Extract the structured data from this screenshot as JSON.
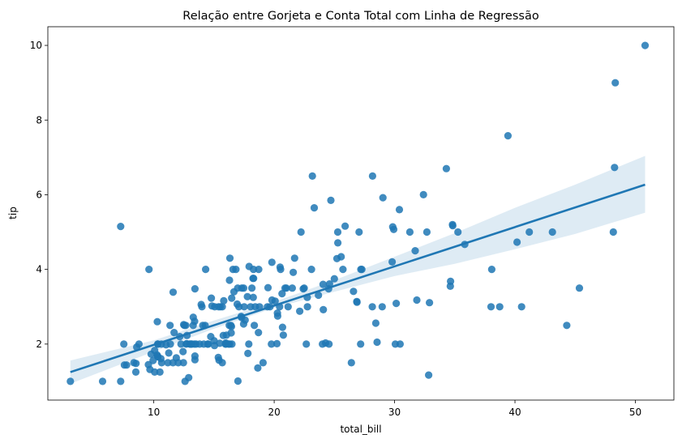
{
  "chart_data": {
    "type": "scatter",
    "title": "Relação entre Gorjeta e Conta Total com Linha de Regressão",
    "xlabel": "total_bill",
    "ylabel": "tip",
    "xlim": [
      1.2,
      53.2
    ],
    "ylim": [
      0.5,
      10.5
    ],
    "xticks": [
      10,
      20,
      30,
      40,
      50
    ],
    "yticks": [
      2,
      4,
      6,
      8,
      10
    ],
    "grid": false,
    "colors": {
      "points": "#1f77b4",
      "line": "#1f77b4",
      "band": "#1f77b4"
    },
    "regression": {
      "x": [
        3.07,
        50.81
      ],
      "y": [
        1.25,
        6.27
      ]
    },
    "confidence_band": {
      "x": [
        3.07,
        10,
        15,
        20,
        25,
        30,
        35,
        40,
        45,
        50.81
      ],
      "lower": [
        0.94,
        1.8,
        2.41,
        2.97,
        3.4,
        3.82,
        4.15,
        4.54,
        4.95,
        5.52
      ],
      "upper": [
        1.56,
        2.1,
        2.63,
        3.13,
        3.71,
        4.34,
        4.97,
        5.65,
        6.27,
        7.04
      ]
    },
    "series": [
      {
        "points": [
          [
            3.07,
            1.0
          ],
          [
            5.75,
            1.0
          ],
          [
            7.25,
            1.0
          ],
          [
            7.25,
            5.15
          ],
          [
            7.51,
            2.0
          ],
          [
            7.56,
            1.44
          ],
          [
            7.74,
            1.44
          ],
          [
            8.35,
            1.5
          ],
          [
            8.51,
            1.25
          ],
          [
            8.52,
            1.48
          ],
          [
            8.58,
            1.92
          ],
          [
            8.77,
            2.0
          ],
          [
            9.55,
            1.45
          ],
          [
            9.6,
            4.0
          ],
          [
            9.68,
            1.32
          ],
          [
            9.78,
            1.73
          ],
          [
            9.94,
            1.56
          ],
          [
            10.07,
            1.83
          ],
          [
            10.07,
            1.25
          ],
          [
            10.27,
            1.71
          ],
          [
            10.29,
            2.6
          ],
          [
            10.33,
            1.67
          ],
          [
            10.33,
            2.0
          ],
          [
            10.34,
            1.66
          ],
          [
            10.34,
            2.0
          ],
          [
            10.51,
            1.25
          ],
          [
            10.59,
            1.61
          ],
          [
            10.63,
            2.0
          ],
          [
            10.65,
            1.5
          ],
          [
            11.02,
            1.98
          ],
          [
            11.17,
            1.5
          ],
          [
            11.24,
            1.76
          ],
          [
            11.35,
            2.5
          ],
          [
            11.38,
            2.0
          ],
          [
            11.59,
            1.5
          ],
          [
            11.61,
            3.39
          ],
          [
            11.69,
            2.31
          ],
          [
            11.87,
            1.63
          ],
          [
            12.03,
            1.5
          ],
          [
            12.16,
            2.2
          ],
          [
            12.26,
            2.0
          ],
          [
            12.43,
            1.8
          ],
          [
            12.46,
            1.5
          ],
          [
            12.48,
            2.52
          ],
          [
            12.54,
            2.5
          ],
          [
            12.6,
            1.0
          ],
          [
            12.66,
            2.5
          ],
          [
            12.69,
            2.0
          ],
          [
            12.74,
            2.01
          ],
          [
            12.76,
            2.23
          ],
          [
            12.9,
            1.1
          ],
          [
            13.0,
            2.0
          ],
          [
            13.03,
            2.0
          ],
          [
            13.13,
            2.0
          ],
          [
            13.16,
            2.0
          ],
          [
            13.27,
            2.5
          ],
          [
            13.28,
            2.72
          ],
          [
            13.37,
            2.0
          ],
          [
            13.39,
            2.61
          ],
          [
            13.42,
            3.48
          ],
          [
            13.42,
            1.68
          ],
          [
            13.42,
            1.58
          ],
          [
            13.51,
            2.0
          ],
          [
            13.81,
            2.0
          ],
          [
            13.94,
            3.06
          ],
          [
            14.0,
            3.0
          ],
          [
            14.07,
            2.5
          ],
          [
            14.15,
            2.0
          ],
          [
            14.26,
            2.5
          ],
          [
            14.31,
            4.0
          ],
          [
            14.48,
            2.0
          ],
          [
            14.52,
            2.0
          ],
          [
            14.73,
            2.2
          ],
          [
            14.78,
            3.23
          ],
          [
            14.83,
            3.02
          ],
          [
            15.01,
            2.09
          ],
          [
            15.04,
            1.96
          ],
          [
            15.06,
            3.0
          ],
          [
            15.36,
            1.64
          ],
          [
            15.38,
            3.0
          ],
          [
            15.42,
            1.57
          ],
          [
            15.48,
            2.02
          ],
          [
            15.53,
            3.0
          ],
          [
            15.69,
            3.0
          ],
          [
            15.69,
            1.5
          ],
          [
            15.77,
            2.23
          ],
          [
            15.81,
            3.16
          ],
          [
            15.95,
            2.0
          ],
          [
            15.98,
            2.03
          ],
          [
            16.0,
            2.0
          ],
          [
            16.04,
            2.24
          ],
          [
            16.21,
            2.0
          ],
          [
            16.27,
            2.5
          ],
          [
            16.29,
            3.71
          ],
          [
            16.31,
            2.0
          ],
          [
            16.32,
            4.3
          ],
          [
            16.4,
            2.5
          ],
          [
            16.43,
            2.3
          ],
          [
            16.45,
            2.47
          ],
          [
            16.47,
            3.23
          ],
          [
            16.49,
            2.0
          ],
          [
            16.58,
            4.0
          ],
          [
            16.66,
            3.4
          ],
          [
            16.82,
            4.0
          ],
          [
            16.93,
            3.07
          ],
          [
            16.97,
            3.5
          ],
          [
            16.99,
            1.01
          ],
          [
            17.07,
            3.0
          ],
          [
            17.26,
            2.74
          ],
          [
            17.29,
            2.71
          ],
          [
            17.31,
            3.5
          ],
          [
            17.46,
            2.54
          ],
          [
            17.47,
            3.5
          ],
          [
            17.51,
            3.0
          ],
          [
            17.59,
            2.64
          ],
          [
            17.78,
            3.27
          ],
          [
            17.82,
            1.75
          ],
          [
            17.89,
            2.0
          ],
          [
            17.92,
            4.08
          ],
          [
            18.04,
            3.0
          ],
          [
            18.15,
            3.5
          ],
          [
            18.24,
            3.76
          ],
          [
            18.26,
            3.25
          ],
          [
            18.28,
            4.0
          ],
          [
            18.29,
            3.76
          ],
          [
            18.35,
            2.5
          ],
          [
            18.43,
            3.0
          ],
          [
            18.64,
            1.36
          ],
          [
            18.69,
            2.31
          ],
          [
            18.71,
            4.0
          ],
          [
            18.78,
            3.0
          ],
          [
            19.08,
            1.5
          ],
          [
            19.44,
            3.0
          ],
          [
            19.49,
            3.51
          ],
          [
            19.65,
            3.0
          ],
          [
            19.77,
            2.0
          ],
          [
            19.81,
            4.19
          ],
          [
            19.82,
            3.18
          ],
          [
            20.08,
            3.15
          ],
          [
            20.23,
            2.01
          ],
          [
            20.27,
            2.83
          ],
          [
            20.29,
            2.75
          ],
          [
            20.45,
            3.0
          ],
          [
            20.49,
            4.06
          ],
          [
            20.53,
            4.0
          ],
          [
            20.65,
            3.35
          ],
          [
            20.69,
            2.45
          ],
          [
            20.76,
            2.24
          ],
          [
            20.9,
            3.5
          ],
          [
            21.01,
            3.5
          ],
          [
            21.16,
            3.0
          ],
          [
            21.5,
            3.5
          ],
          [
            21.58,
            3.92
          ],
          [
            21.7,
            4.3
          ],
          [
            22.12,
            2.88
          ],
          [
            22.23,
            5.0
          ],
          [
            22.42,
            3.48
          ],
          [
            22.49,
            3.5
          ],
          [
            22.67,
            2.0
          ],
          [
            22.75,
            3.25
          ],
          [
            22.76,
            3.0
          ],
          [
            23.1,
            4.0
          ],
          [
            23.17,
            6.5
          ],
          [
            23.33,
            5.65
          ],
          [
            23.68,
            3.31
          ],
          [
            24.01,
            2.0
          ],
          [
            24.06,
            3.6
          ],
          [
            24.08,
            2.92
          ],
          [
            24.27,
            2.03
          ],
          [
            24.52,
            3.48
          ],
          [
            24.55,
            2.0
          ],
          [
            24.59,
            3.61
          ],
          [
            24.71,
            5.85
          ],
          [
            25.0,
            3.75
          ],
          [
            25.21,
            4.29
          ],
          [
            25.28,
            5.0
          ],
          [
            25.29,
            4.71
          ],
          [
            25.56,
            4.34
          ],
          [
            25.71,
            4.0
          ],
          [
            25.89,
            5.16
          ],
          [
            26.41,
            1.5
          ],
          [
            26.59,
            3.41
          ],
          [
            26.86,
            3.14
          ],
          [
            26.88,
            3.12
          ],
          [
            27.05,
            5.0
          ],
          [
            27.18,
            2.0
          ],
          [
            27.2,
            4.0
          ],
          [
            27.28,
            4.0
          ],
          [
            28.15,
            3.0
          ],
          [
            28.17,
            6.5
          ],
          [
            28.44,
            2.56
          ],
          [
            28.55,
            2.05
          ],
          [
            28.97,
            3.0
          ],
          [
            29.03,
            5.92
          ],
          [
            29.8,
            4.2
          ],
          [
            29.85,
            5.14
          ],
          [
            29.93,
            5.07
          ],
          [
            30.06,
            2.0
          ],
          [
            30.14,
            3.09
          ],
          [
            30.4,
            5.6
          ],
          [
            30.46,
            2.0
          ],
          [
            31.27,
            5.0
          ],
          [
            31.71,
            4.5
          ],
          [
            31.85,
            3.18
          ],
          [
            32.4,
            6.0
          ],
          [
            32.68,
            5.0
          ],
          [
            32.83,
            1.17
          ],
          [
            32.9,
            3.11
          ],
          [
            34.3,
            6.7
          ],
          [
            34.63,
            3.55
          ],
          [
            34.65,
            3.68
          ],
          [
            34.81,
            5.2
          ],
          [
            34.83,
            5.17
          ],
          [
            35.26,
            5.0
          ],
          [
            35.83,
            4.67
          ],
          [
            38.01,
            3.0
          ],
          [
            38.07,
            4.0
          ],
          [
            38.73,
            3.0
          ],
          [
            39.42,
            7.58
          ],
          [
            40.17,
            4.73
          ],
          [
            40.55,
            3.0
          ],
          [
            41.19,
            5.0
          ],
          [
            43.11,
            5.0
          ],
          [
            44.3,
            2.5
          ],
          [
            45.35,
            3.5
          ],
          [
            48.17,
            5.0
          ],
          [
            48.27,
            6.73
          ],
          [
            48.33,
            9.0
          ],
          [
            50.81,
            10.0
          ]
        ]
      }
    ]
  }
}
